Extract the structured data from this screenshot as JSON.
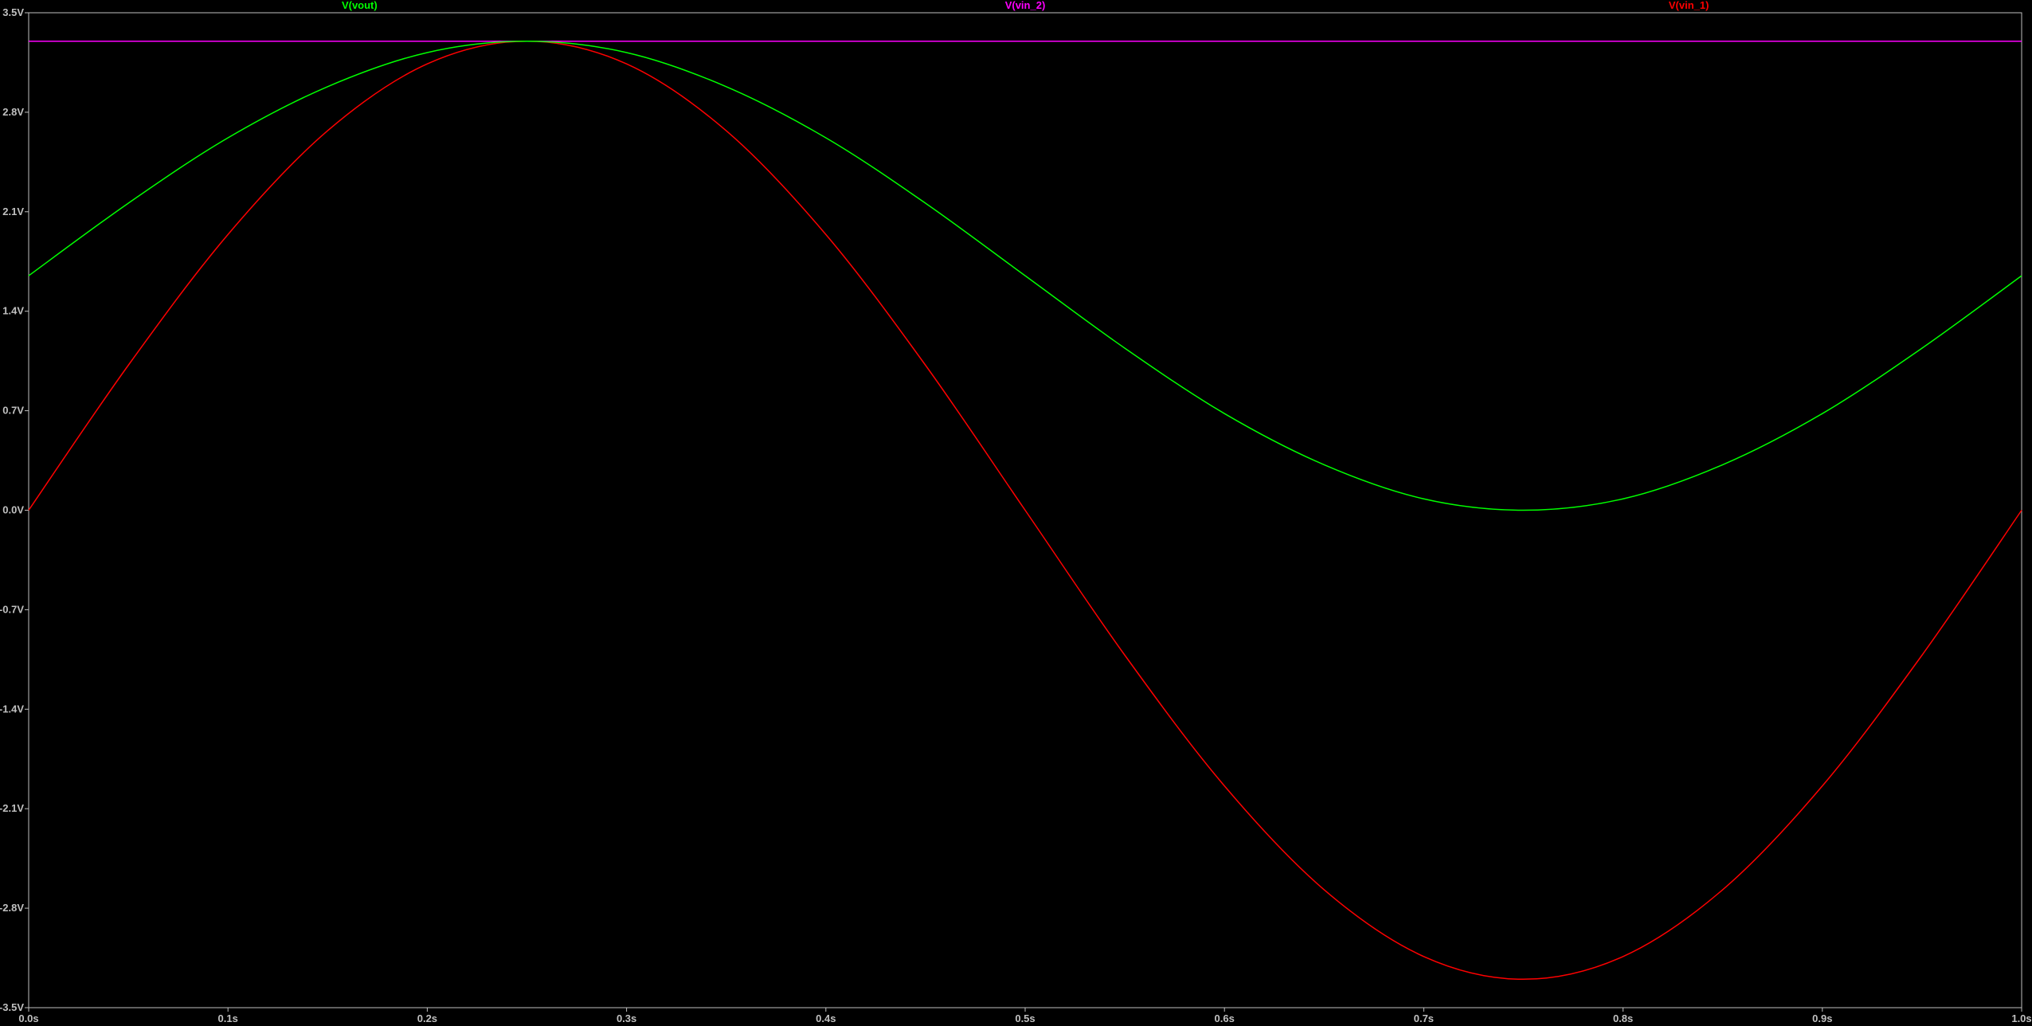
{
  "chart_data": {
    "type": "line",
    "title": "",
    "xlabel": "",
    "ylabel": "",
    "xlim": [
      0,
      1
    ],
    "ylim": [
      -3.5,
      3.5
    ],
    "grid": false,
    "legend_placement": "top",
    "x_ticks": [
      {
        "value": 0.0,
        "label": "0.0s"
      },
      {
        "value": 0.1,
        "label": "0.1s"
      },
      {
        "value": 0.2,
        "label": "0.2s"
      },
      {
        "value": 0.3,
        "label": "0.3s"
      },
      {
        "value": 0.4,
        "label": "0.4s"
      },
      {
        "value": 0.5,
        "label": "0.5s"
      },
      {
        "value": 0.6,
        "label": "0.6s"
      },
      {
        "value": 0.7,
        "label": "0.7s"
      },
      {
        "value": 0.8,
        "label": "0.8s"
      },
      {
        "value": 0.9,
        "label": "0.9s"
      },
      {
        "value": 1.0,
        "label": "1.0s"
      }
    ],
    "y_ticks": [
      {
        "value": 3.5,
        "label": "3.5V"
      },
      {
        "value": 2.8,
        "label": "2.8V"
      },
      {
        "value": 2.1,
        "label": "2.1V"
      },
      {
        "value": 1.4,
        "label": "1.4V"
      },
      {
        "value": 0.7,
        "label": "0.7V"
      },
      {
        "value": 0.0,
        "label": "0.0V"
      },
      {
        "value": -0.7,
        "label": "-0.7V"
      },
      {
        "value": -1.4,
        "label": "-1.4V"
      },
      {
        "value": -2.1,
        "label": "-2.1V"
      },
      {
        "value": -2.8,
        "label": "-2.8V"
      },
      {
        "value": -3.5,
        "label": "-3.5V"
      }
    ],
    "x": [
      0.0,
      0.05,
      0.1,
      0.15,
      0.2,
      0.25,
      0.3,
      0.35,
      0.4,
      0.45,
      0.5,
      0.55,
      0.6,
      0.65,
      0.7,
      0.75,
      0.8,
      0.85,
      0.9,
      0.95,
      1.0
    ],
    "series": [
      {
        "name": "V(vout)",
        "color": "#00ff00",
        "values": [
          1.65,
          2.16,
          2.62,
          2.98,
          3.22,
          3.3,
          3.22,
          2.98,
          2.62,
          2.16,
          1.65,
          1.14,
          0.68,
          0.32,
          0.08,
          0.0,
          0.08,
          0.32,
          0.68,
          1.14,
          1.65
        ]
      },
      {
        "name": "V(vin_2)",
        "color": "#ff00ff",
        "values": [
          3.3,
          3.3,
          3.3,
          3.3,
          3.3,
          3.3,
          3.3,
          3.3,
          3.3,
          3.3,
          3.3,
          3.3,
          3.3,
          3.3,
          3.3,
          3.3,
          3.3,
          3.3,
          3.3,
          3.3,
          3.3
        ]
      },
      {
        "name": "V(vin_1)",
        "color": "#ff0000",
        "values": [
          0.0,
          1.02,
          1.94,
          2.67,
          3.14,
          3.3,
          3.14,
          2.67,
          1.94,
          1.02,
          0.0,
          -1.02,
          -1.94,
          -2.67,
          -3.14,
          -3.3,
          -3.14,
          -2.67,
          -1.94,
          -1.02,
          0.0
        ]
      }
    ]
  },
  "colors": {
    "background": "#000000",
    "axis": "#c0c0c0"
  }
}
